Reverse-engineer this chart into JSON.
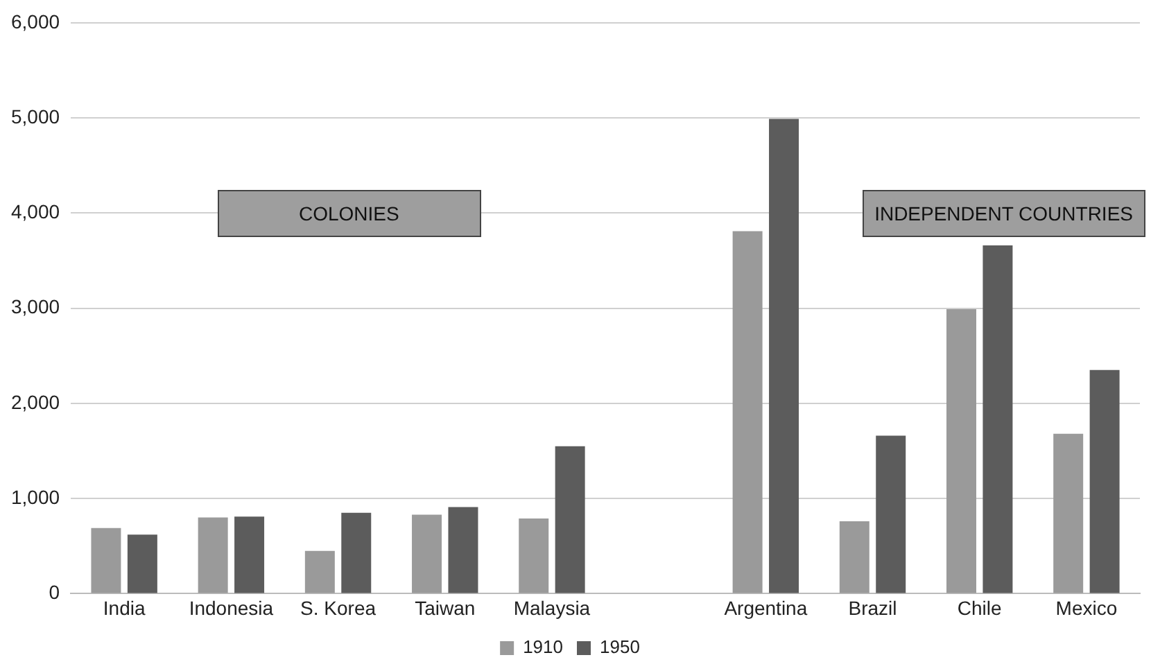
{
  "chart_data": {
    "type": "bar",
    "categories": [
      "India",
      "Indonesia",
      "S. Korea",
      "Taiwan",
      "Malaysia",
      null,
      "Argentina",
      "Brazil",
      "Chile",
      "Mexico"
    ],
    "series": [
      {
        "name": "1910",
        "color": "#9a9a9a",
        "values": [
          690,
          800,
          450,
          830,
          790,
          null,
          3810,
          760,
          2990,
          1680
        ]
      },
      {
        "name": "1950",
        "color": "#5c5c5c",
        "values": [
          620,
          810,
          850,
          910,
          1550,
          null,
          4990,
          1660,
          3660,
          2350
        ]
      }
    ],
    "ylim": [
      0,
      6000
    ],
    "yticks": [
      {
        "value": 0,
        "label": "0"
      },
      {
        "value": 1000,
        "label": "1,000"
      },
      {
        "value": 2000,
        "label": "2,000"
      },
      {
        "value": 3000,
        "label": "3,000"
      },
      {
        "value": 4000,
        "label": "4,000"
      },
      {
        "value": 5000,
        "label": "5,000"
      },
      {
        "value": 6000,
        "label": "6,000"
      }
    ],
    "grid": "y",
    "legend": "bottom",
    "annotations": [
      "COLONIES",
      "INDEPENDENT COUNTRIES"
    ]
  }
}
